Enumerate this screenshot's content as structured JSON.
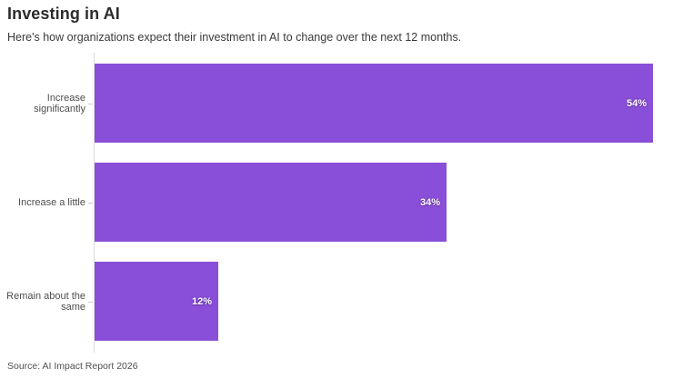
{
  "header": {
    "title": "Investing in AI",
    "subtitle": "Here's how organizations expect their investment in AI to change over the next 12 months."
  },
  "chart_data": {
    "type": "bar",
    "orientation": "horizontal",
    "title": "Investing in AI",
    "categories": [
      "Increase significantly",
      "Increase a little",
      "Remain about the same"
    ],
    "values": [
      54,
      34,
      12
    ],
    "value_labels": [
      "54%",
      "34%",
      "12%"
    ],
    "xlabel": "",
    "ylabel": "",
    "xlim": [
      0,
      54
    ],
    "grid": false,
    "legend": false,
    "bar_color": "#8a4fd8",
    "axis_line_color": "#dcdcdc",
    "value_label_color": "#ffffff"
  },
  "footer": {
    "source": "Source: AI Impact Report 2026"
  }
}
